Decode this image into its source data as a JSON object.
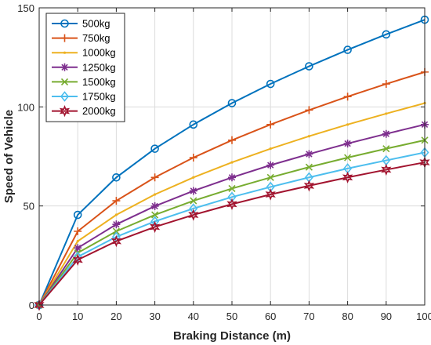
{
  "chart_data": {
    "type": "line",
    "title": "",
    "xlabel": "Braking Distance (m)",
    "ylabel": "Speed of Vehicle",
    "xlim": [
      0,
      100
    ],
    "ylim": [
      0,
      150
    ],
    "x_ticks": [
      "0",
      "10",
      "20",
      "30",
      "40",
      "50",
      "60",
      "70",
      "80",
      "90",
      "100"
    ],
    "y_ticks": [
      "0",
      "50",
      "100",
      "150"
    ],
    "grid": true,
    "legend_position": "top-left",
    "x": [
      0,
      10,
      20,
      30,
      40,
      50,
      60,
      70,
      80,
      90,
      100
    ],
    "series": [
      {
        "name": "500kg",
        "color": "#0072BD",
        "marker": "circle",
        "values": [
          0,
          45.5,
          64.4,
          78.9,
          91.1,
          101.9,
          111.6,
          120.5,
          128.8,
          136.6,
          144.0
        ]
      },
      {
        "name": "750kg",
        "color": "#D95319",
        "marker": "plus",
        "values": [
          0,
          37.2,
          52.6,
          64.4,
          74.4,
          83.2,
          91.1,
          98.4,
          105.2,
          111.6,
          117.6
        ]
      },
      {
        "name": "1000kg",
        "color": "#EDB120",
        "marker": "point",
        "values": [
          0,
          32.2,
          45.5,
          55.8,
          64.4,
          72.0,
          78.9,
          85.2,
          91.1,
          96.6,
          101.9
        ]
      },
      {
        "name": "1250kg",
        "color": "#7E2F8E",
        "marker": "asterisk",
        "values": [
          0,
          28.8,
          40.7,
          49.9,
          57.6,
          64.4,
          70.6,
          76.2,
          81.5,
          86.4,
          91.1
        ]
      },
      {
        "name": "1500kg",
        "color": "#77AC30",
        "marker": "x",
        "values": [
          0,
          26.3,
          37.2,
          45.5,
          52.6,
          58.8,
          64.4,
          69.6,
          74.4,
          78.9,
          83.2
        ]
      },
      {
        "name": "1750kg",
        "color": "#4DBEEE",
        "marker": "diamond",
        "values": [
          0,
          24.3,
          34.4,
          42.2,
          48.7,
          54.5,
          59.6,
          64.4,
          68.9,
          73.0,
          77.0
        ]
      },
      {
        "name": "2000kg",
        "color": "#A2142F",
        "marker": "hexagram",
        "values": [
          0,
          22.8,
          32.2,
          39.4,
          45.5,
          50.9,
          55.8,
          60.2,
          64.4,
          68.3,
          72.0
        ]
      }
    ]
  }
}
